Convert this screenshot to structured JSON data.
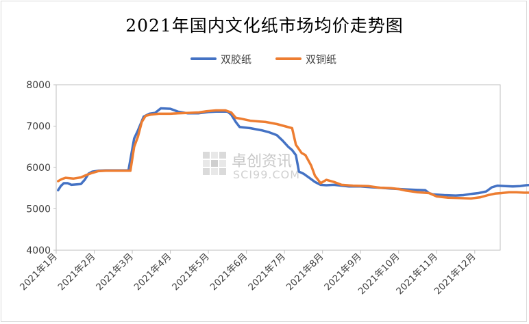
{
  "chart_data": {
    "type": "line",
    "title": "2021年国内文化纸市场均价走势图",
    "xlabel": "",
    "ylabel": "",
    "ylim": [
      4000,
      8000
    ],
    "yticks": [
      4000,
      5000,
      6000,
      7000,
      8000
    ],
    "categories": [
      "2021年1月",
      "2021年2月",
      "2021年3月",
      "2021年4月",
      "2021年5月",
      "2021年6月",
      "2021年7月",
      "2021年8月",
      "2021年9月",
      "2021年10月",
      "2021年11月",
      "2021年12月"
    ],
    "grid": false,
    "legend_position": "top-center",
    "series": [
      {
        "name": "双胶纸",
        "color": "#4472C4",
        "points": [
          [
            0.05,
            5450
          ],
          [
            0.12,
            5550
          ],
          [
            0.2,
            5620
          ],
          [
            0.3,
            5620
          ],
          [
            0.4,
            5580
          ],
          [
            0.65,
            5600
          ],
          [
            0.75,
            5700
          ],
          [
            0.85,
            5850
          ],
          [
            0.95,
            5900
          ],
          [
            1.1,
            5920
          ],
          [
            1.3,
            5930
          ],
          [
            1.7,
            5930
          ],
          [
            1.9,
            5930
          ],
          [
            2.05,
            6700
          ],
          [
            2.15,
            6900
          ],
          [
            2.3,
            7230
          ],
          [
            2.45,
            7300
          ],
          [
            2.6,
            7320
          ],
          [
            2.75,
            7430
          ],
          [
            3.0,
            7420
          ],
          [
            3.2,
            7350
          ],
          [
            3.45,
            7310
          ],
          [
            3.75,
            7310
          ],
          [
            4.0,
            7340
          ],
          [
            4.2,
            7350
          ],
          [
            4.5,
            7350
          ],
          [
            4.6,
            7280
          ],
          [
            4.72,
            7100
          ],
          [
            4.82,
            6980
          ],
          [
            5.1,
            6950
          ],
          [
            5.4,
            6900
          ],
          [
            5.6,
            6850
          ],
          [
            5.8,
            6780
          ],
          [
            5.95,
            6650
          ],
          [
            6.1,
            6500
          ],
          [
            6.2,
            6420
          ],
          [
            6.3,
            6300
          ],
          [
            6.38,
            5900
          ],
          [
            6.5,
            5850
          ],
          [
            6.65,
            5750
          ],
          [
            6.8,
            5650
          ],
          [
            6.95,
            5580
          ],
          [
            7.1,
            5570
          ],
          [
            7.3,
            5580
          ],
          [
            7.5,
            5560
          ],
          [
            7.7,
            5540
          ],
          [
            8.0,
            5540
          ],
          [
            8.3,
            5520
          ],
          [
            8.5,
            5510
          ],
          [
            8.8,
            5490
          ],
          [
            9.2,
            5470
          ],
          [
            9.45,
            5460
          ],
          [
            9.7,
            5450
          ],
          [
            9.8,
            5380
          ],
          [
            9.9,
            5350
          ],
          [
            10.2,
            5330
          ],
          [
            10.5,
            5320
          ],
          [
            10.7,
            5330
          ],
          [
            10.9,
            5360
          ],
          [
            11.1,
            5380
          ],
          [
            11.3,
            5420
          ],
          [
            11.45,
            5520
          ],
          [
            11.6,
            5560
          ],
          [
            11.8,
            5550
          ],
          [
            12.0,
            5540
          ],
          [
            12.2,
            5550
          ],
          [
            12.35,
            5570
          ],
          [
            12.55,
            5580
          ],
          [
            12.7,
            5580
          ]
        ]
      },
      {
        "name": "双铜纸",
        "color": "#ED7D31",
        "points": [
          [
            0.05,
            5670
          ],
          [
            0.15,
            5720
          ],
          [
            0.25,
            5750
          ],
          [
            0.45,
            5730
          ],
          [
            0.65,
            5760
          ],
          [
            0.8,
            5820
          ],
          [
            0.95,
            5870
          ],
          [
            1.1,
            5910
          ],
          [
            1.3,
            5920
          ],
          [
            1.7,
            5920
          ],
          [
            1.95,
            5920
          ],
          [
            2.05,
            6500
          ],
          [
            2.15,
            6750
          ],
          [
            2.25,
            7100
          ],
          [
            2.35,
            7250
          ],
          [
            2.5,
            7280
          ],
          [
            2.7,
            7300
          ],
          [
            3.0,
            7300
          ],
          [
            3.2,
            7310
          ],
          [
            3.5,
            7320
          ],
          [
            3.75,
            7330
          ],
          [
            3.95,
            7360
          ],
          [
            4.2,
            7380
          ],
          [
            4.45,
            7380
          ],
          [
            4.6,
            7330
          ],
          [
            4.72,
            7200
          ],
          [
            4.85,
            7180
          ],
          [
            5.1,
            7130
          ],
          [
            5.5,
            7100
          ],
          [
            5.8,
            7050
          ],
          [
            6.0,
            7000
          ],
          [
            6.2,
            6950
          ],
          [
            6.3,
            6550
          ],
          [
            6.45,
            6350
          ],
          [
            6.55,
            6300
          ],
          [
            6.7,
            6050
          ],
          [
            6.8,
            5800
          ],
          [
            6.95,
            5620
          ],
          [
            7.1,
            5700
          ],
          [
            7.3,
            5650
          ],
          [
            7.5,
            5580
          ],
          [
            7.8,
            5560
          ],
          [
            8.2,
            5550
          ],
          [
            8.5,
            5510
          ],
          [
            8.8,
            5500
          ],
          [
            9.0,
            5480
          ],
          [
            9.2,
            5440
          ],
          [
            9.5,
            5400
          ],
          [
            9.8,
            5380
          ],
          [
            10.0,
            5300
          ],
          [
            10.3,
            5270
          ],
          [
            10.6,
            5260
          ],
          [
            10.9,
            5250
          ],
          [
            11.15,
            5280
          ],
          [
            11.35,
            5330
          ],
          [
            11.55,
            5370
          ],
          [
            11.7,
            5380
          ],
          [
            11.9,
            5400
          ],
          [
            12.1,
            5400
          ],
          [
            12.3,
            5390
          ],
          [
            12.45,
            5390
          ],
          [
            12.7,
            5400
          ]
        ]
      }
    ]
  },
  "watermark": {
    "cn": "卓创资讯",
    "en": "SCI99.COM"
  }
}
